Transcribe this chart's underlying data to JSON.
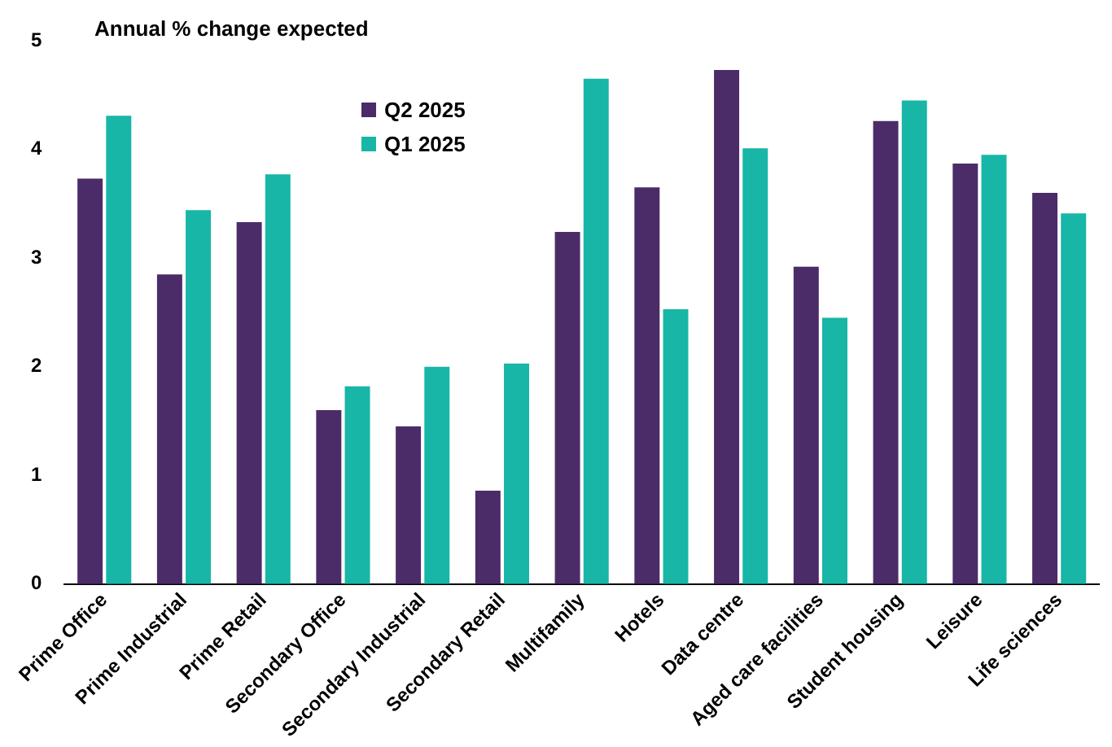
{
  "chart_data": {
    "type": "bar",
    "ylabel": "Annual % change expected",
    "categories": [
      "Prime Office",
      "Prime Industrial",
      "Prime Retail",
      "Secondary Office",
      "Secondary Industrial",
      "Secondary Retail",
      "Multifamily",
      "Hotels",
      "Data centre",
      "Aged care facilities",
      "Student housing",
      "Leisure",
      "Life sciences"
    ],
    "series": [
      {
        "name": "Q2 2025",
        "color": "#4b2c69",
        "values": [
          3.73,
          2.85,
          3.33,
          1.6,
          1.45,
          0.86,
          3.24,
          3.65,
          4.73,
          2.92,
          4.26,
          3.87,
          3.6
        ]
      },
      {
        "name": "Q1 2025",
        "color": "#17b6a7",
        "values": [
          4.31,
          3.44,
          3.77,
          1.82,
          2.0,
          2.03,
          4.65,
          2.53,
          4.01,
          2.45,
          4.45,
          3.95,
          3.41
        ]
      }
    ],
    "ylim": [
      0,
      5
    ],
    "yticks": [
      0,
      1,
      2,
      3,
      4,
      5
    ],
    "grid": false,
    "legend": "top left"
  }
}
